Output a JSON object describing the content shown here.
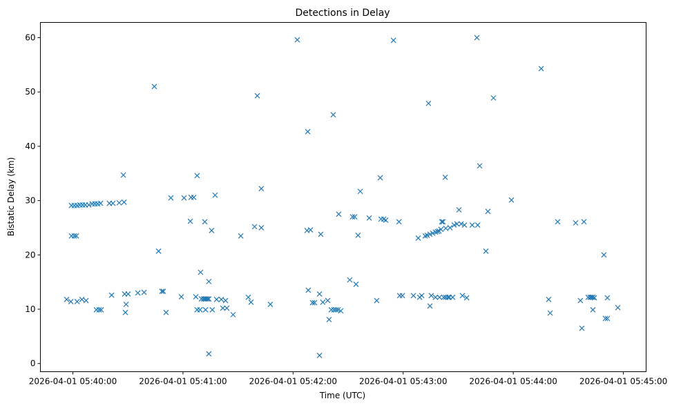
{
  "chart_data": {
    "type": "scatter",
    "title": "Detections in Delay",
    "xlabel": "Time (UTC)",
    "ylabel": "Bistatic Delay (km)",
    "x_units": "seconds after 2026-04-01 05:40:00",
    "xlim": [
      -17.7,
      312.4
    ],
    "ylim": [
      -1.5,
      62.8
    ],
    "grid": false,
    "marker": "x",
    "color": "#1f77b4",
    "xticks": [
      {
        "value": 0,
        "label": "2026-04-01 05:40:00"
      },
      {
        "value": 60,
        "label": "2026-04-01 05:41:00"
      },
      {
        "value": 120,
        "label": "2026-04-01 05:42:00"
      },
      {
        "value": 180,
        "label": "2026-04-01 05:43:00"
      },
      {
        "value": 240,
        "label": "2026-04-01 05:44:00"
      },
      {
        "value": 300,
        "label": "2026-04-01 05:45:00"
      }
    ],
    "yticks": [
      {
        "value": 0,
        "label": "0"
      },
      {
        "value": 10,
        "label": "10"
      },
      {
        "value": 20,
        "label": "20"
      },
      {
        "value": 30,
        "label": "30"
      },
      {
        "value": 40,
        "label": "40"
      },
      {
        "value": 50,
        "label": "50"
      },
      {
        "value": 60,
        "label": "60"
      }
    ],
    "points": [
      [
        -0.8,
        29.1
      ],
      [
        0.8,
        29.1
      ],
      [
        2.3,
        29.1
      ],
      [
        3.8,
        29.2
      ],
      [
        5.3,
        29.2
      ],
      [
        6.8,
        29.2
      ],
      [
        8.7,
        29.2
      ],
      [
        10.5,
        29.4
      ],
      [
        12.0,
        29.4
      ],
      [
        13.5,
        29.4
      ],
      [
        15.1,
        29.5
      ],
      [
        19.9,
        29.5
      ],
      [
        21.8,
        29.5
      ],
      [
        25.2,
        29.6
      ],
      [
        27.9,
        29.7
      ],
      [
        -0.8,
        23.5
      ],
      [
        0.8,
        23.5
      ],
      [
        1.9,
        23.5
      ],
      [
        -3.4,
        11.8
      ],
      [
        -1.1,
        11.4
      ],
      [
        2.3,
        11.4
      ],
      [
        4.9,
        11.8
      ],
      [
        7.2,
        11.6
      ],
      [
        12.8,
        9.9
      ],
      [
        14.3,
        9.9
      ],
      [
        15.4,
        9.9
      ],
      [
        21.1,
        12.6
      ],
      [
        27.5,
        34.7
      ],
      [
        28.2,
        12.8
      ],
      [
        30.1,
        12.8
      ],
      [
        29.0,
        10.9
      ],
      [
        28.6,
        9.4
      ],
      [
        35.4,
        13.0
      ],
      [
        38.8,
        13.1
      ],
      [
        44.4,
        51.0
      ],
      [
        46.7,
        20.7
      ],
      [
        48.5,
        13.3
      ],
      [
        49.3,
        13.3
      ],
      [
        50.8,
        9.4
      ],
      [
        53.4,
        30.5
      ],
      [
        59.1,
        12.3
      ],
      [
        60.6,
        30.5
      ],
      [
        64.0,
        26.2
      ],
      [
        64.4,
        30.6
      ],
      [
        65.9,
        30.6
      ],
      [
        67.0,
        12.3
      ],
      [
        67.7,
        34.6
      ],
      [
        67.7,
        9.9
      ],
      [
        69.3,
        9.9
      ],
      [
        69.6,
        16.8
      ],
      [
        70.0,
        11.9
      ],
      [
        71.1,
        11.9
      ],
      [
        71.9,
        11.9
      ],
      [
        72.6,
        11.9
      ],
      [
        73.4,
        11.9
      ],
      [
        74.1,
        11.9
      ],
      [
        71.9,
        26.1
      ],
      [
        72.3,
        9.9
      ],
      [
        74.1,
        15.1
      ],
      [
        74.1,
        1.8
      ],
      [
        75.6,
        24.5
      ],
      [
        76.0,
        9.9
      ],
      [
        77.5,
        31.0
      ],
      [
        78.3,
        11.8
      ],
      [
        80.9,
        11.8
      ],
      [
        81.7,
        10.2
      ],
      [
        83.2,
        11.6
      ],
      [
        83.9,
        10.2
      ],
      [
        87.3,
        9.0
      ],
      [
        91.5,
        23.5
      ],
      [
        95.6,
        12.2
      ],
      [
        97.1,
        11.3
      ],
      [
        99.0,
        25.2
      ],
      [
        100.5,
        49.3
      ],
      [
        102.7,
        25.0
      ],
      [
        102.7,
        32.2
      ],
      [
        107.6,
        10.9
      ],
      [
        122.3,
        59.6
      ],
      [
        127.6,
        24.5
      ],
      [
        128.0,
        42.7
      ],
      [
        128.3,
        13.5
      ],
      [
        129.5,
        24.6
      ],
      [
        130.6,
        11.2
      ],
      [
        131.7,
        11.2
      ],
      [
        134.4,
        12.8
      ],
      [
        134.4,
        1.5
      ],
      [
        135.1,
        23.8
      ],
      [
        136.2,
        11.3
      ],
      [
        138.9,
        11.6
      ],
      [
        139.6,
        8.1
      ],
      [
        140.8,
        9.9
      ],
      [
        142.3,
        9.9
      ],
      [
        143.4,
        9.9
      ],
      [
        144.5,
        9.9
      ],
      [
        146.0,
        9.7
      ],
      [
        141.9,
        45.8
      ],
      [
        144.9,
        27.5
      ],
      [
        150.9,
        15.4
      ],
      [
        152.4,
        27.0
      ],
      [
        153.6,
        27.0
      ],
      [
        154.3,
        14.6
      ],
      [
        155.4,
        23.6
      ],
      [
        156.6,
        31.7
      ],
      [
        161.5,
        26.8
      ],
      [
        165.6,
        11.6
      ],
      [
        167.5,
        34.2
      ],
      [
        167.9,
        26.6
      ],
      [
        169.4,
        26.6
      ],
      [
        170.5,
        26.4
      ],
      [
        174.7,
        59.5
      ],
      [
        177.7,
        26.1
      ],
      [
        178.1,
        12.5
      ],
      [
        179.6,
        12.5
      ],
      [
        185.6,
        12.5
      ],
      [
        188.2,
        23.1
      ],
      [
        189.0,
        12.2
      ],
      [
        190.1,
        12.5
      ],
      [
        192.0,
        23.5
      ],
      [
        193.1,
        23.6
      ],
      [
        193.8,
        47.9
      ],
      [
        194.6,
        23.8
      ],
      [
        194.6,
        10.6
      ],
      [
        195.3,
        12.5
      ],
      [
        196.1,
        24.0
      ],
      [
        197.6,
        24.2
      ],
      [
        197.6,
        12.2
      ],
      [
        198.7,
        24.3
      ],
      [
        199.5,
        24.4
      ],
      [
        199.8,
        12.2
      ],
      [
        201.0,
        26.1
      ],
      [
        200.6,
        24.7
      ],
      [
        201.7,
        26.1
      ],
      [
        202.1,
        12.2
      ],
      [
        202.9,
        34.3
      ],
      [
        203.2,
        12.2
      ],
      [
        203.2,
        24.9
      ],
      [
        204.4,
        12.2
      ],
      [
        205.1,
        12.2
      ],
      [
        205.5,
        25.0
      ],
      [
        207.0,
        12.2
      ],
      [
        207.8,
        25.5
      ],
      [
        209.3,
        25.7
      ],
      [
        210.4,
        28.3
      ],
      [
        211.6,
        25.7
      ],
      [
        212.3,
        12.5
      ],
      [
        213.4,
        25.5
      ],
      [
        214.6,
        12.1
      ],
      [
        217.6,
        25.5
      ],
      [
        220.2,
        60.0
      ],
      [
        220.6,
        25.5
      ],
      [
        221.7,
        36.4
      ],
      [
        225.1,
        20.7
      ],
      [
        226.2,
        28.0
      ],
      [
        229.2,
        48.9
      ],
      [
        239.0,
        30.1
      ],
      [
        255.2,
        54.3
      ],
      [
        259.3,
        11.8
      ],
      [
        260.1,
        9.3
      ],
      [
        264.2,
        26.1
      ],
      [
        274.0,
        25.9
      ],
      [
        276.6,
        11.6
      ],
      [
        277.4,
        6.5
      ],
      [
        278.5,
        26.1
      ],
      [
        280.8,
        12.2
      ],
      [
        281.9,
        12.2
      ],
      [
        282.6,
        12.2
      ],
      [
        283.4,
        12.2
      ],
      [
        283.4,
        9.9
      ],
      [
        284.2,
        12.1
      ],
      [
        289.4,
        20.0
      ],
      [
        290.2,
        8.3
      ],
      [
        291.3,
        8.3
      ],
      [
        291.3,
        12.1
      ],
      [
        297.0,
        10.3
      ]
    ]
  }
}
